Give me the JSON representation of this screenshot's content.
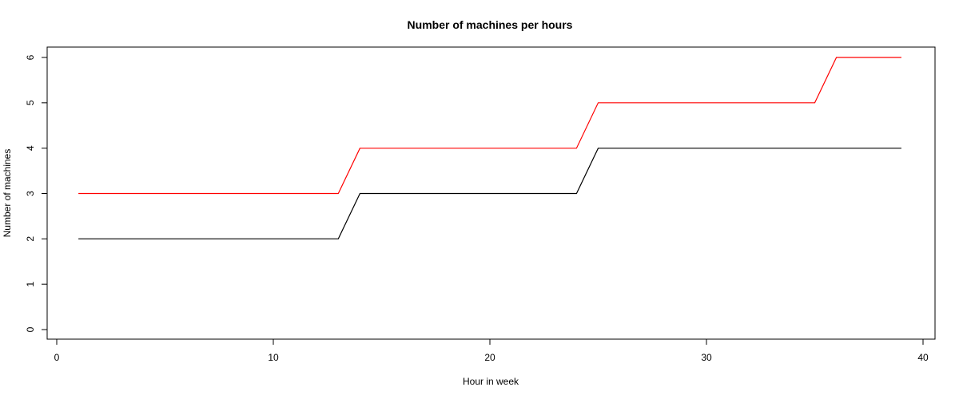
{
  "chart_data": {
    "type": "line",
    "title": "Number of machines per hours",
    "xlabel": "Hour in week",
    "ylabel": "Number of machines",
    "xlim": [
      0,
      40
    ],
    "ylim": [
      0,
      6
    ],
    "x_ticks": [
      0,
      10,
      20,
      30,
      40
    ],
    "y_ticks": [
      0,
      1,
      2,
      3,
      4,
      5,
      6
    ],
    "grid": false,
    "legend": null,
    "series": [
      {
        "color": "#000000",
        "x": [
          1,
          2,
          3,
          4,
          5,
          6,
          7,
          8,
          9,
          10,
          11,
          12,
          13,
          14,
          15,
          16,
          17,
          18,
          19,
          20,
          21,
          22,
          23,
          24,
          25,
          26,
          27,
          28,
          29,
          30,
          31,
          32,
          33,
          34,
          35,
          36,
          37,
          38,
          39
        ],
        "values": [
          2,
          2,
          2,
          2,
          2,
          2,
          2,
          2,
          2,
          2,
          2,
          2,
          2,
          3,
          3,
          3,
          3,
          3,
          3,
          3,
          3,
          3,
          3,
          3,
          4,
          4,
          4,
          4,
          4,
          4,
          4,
          4,
          4,
          4,
          4,
          4,
          4,
          4,
          4
        ]
      },
      {
        "color": "#ff0000",
        "x": [
          1,
          2,
          3,
          4,
          5,
          6,
          7,
          8,
          9,
          10,
          11,
          12,
          13,
          14,
          15,
          16,
          17,
          18,
          19,
          20,
          21,
          22,
          23,
          24,
          25,
          26,
          27,
          28,
          29,
          30,
          31,
          32,
          33,
          34,
          35,
          36,
          37,
          38,
          39
        ],
        "values": [
          3,
          3,
          3,
          3,
          3,
          3,
          3,
          3,
          3,
          3,
          3,
          3,
          3,
          4,
          4,
          4,
          4,
          4,
          4,
          4,
          4,
          4,
          4,
          4,
          5,
          5,
          5,
          5,
          5,
          5,
          5,
          5,
          5,
          5,
          5,
          6,
          6,
          6,
          6
        ]
      }
    ]
  }
}
